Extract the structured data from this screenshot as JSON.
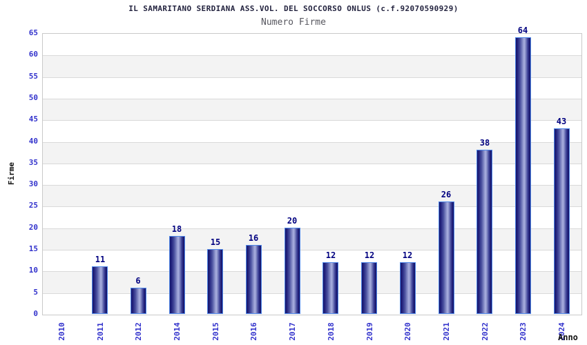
{
  "chart_data": {
    "type": "bar",
    "title": "IL SAMARITANO SERDIANA ASS.VOL. DEL SOCCORSO ONLUS (c.f.92070590929)",
    "subtitle": "Numero Firme",
    "xlabel": "Anno",
    "ylabel": "Firme",
    "categories": [
      "2010",
      "2011",
      "2012",
      "2014",
      "2015",
      "2016",
      "2017",
      "2018",
      "2019",
      "2020",
      "2021",
      "2022",
      "2023",
      "2024"
    ],
    "values": [
      0,
      11,
      6,
      18,
      15,
      16,
      20,
      12,
      12,
      12,
      26,
      38,
      64,
      43
    ],
    "ylim": [
      0,
      65
    ],
    "ytick_step": 5,
    "yticks": [
      0,
      5,
      10,
      15,
      20,
      25,
      30,
      35,
      40,
      45,
      50,
      55,
      60,
      65
    ],
    "grid": true,
    "legend_position": "none",
    "band_stripes": "alternating horizontal stripes of 5 units, white and light gray",
    "colors": {
      "bar_dark": "#191970",
      "bar_light": "#abb1e0",
      "bar_border": "#4f87e8",
      "value_label": "#000080",
      "tick_label": "#3333cc",
      "axis_title": "#121212",
      "title": "#23233f",
      "subtitle": "#56565e",
      "gridline": "#d9d9d9",
      "band_gray": "#f3f3f3",
      "plot_border": "#c9c9c9",
      "background": "#ffffff"
    }
  }
}
